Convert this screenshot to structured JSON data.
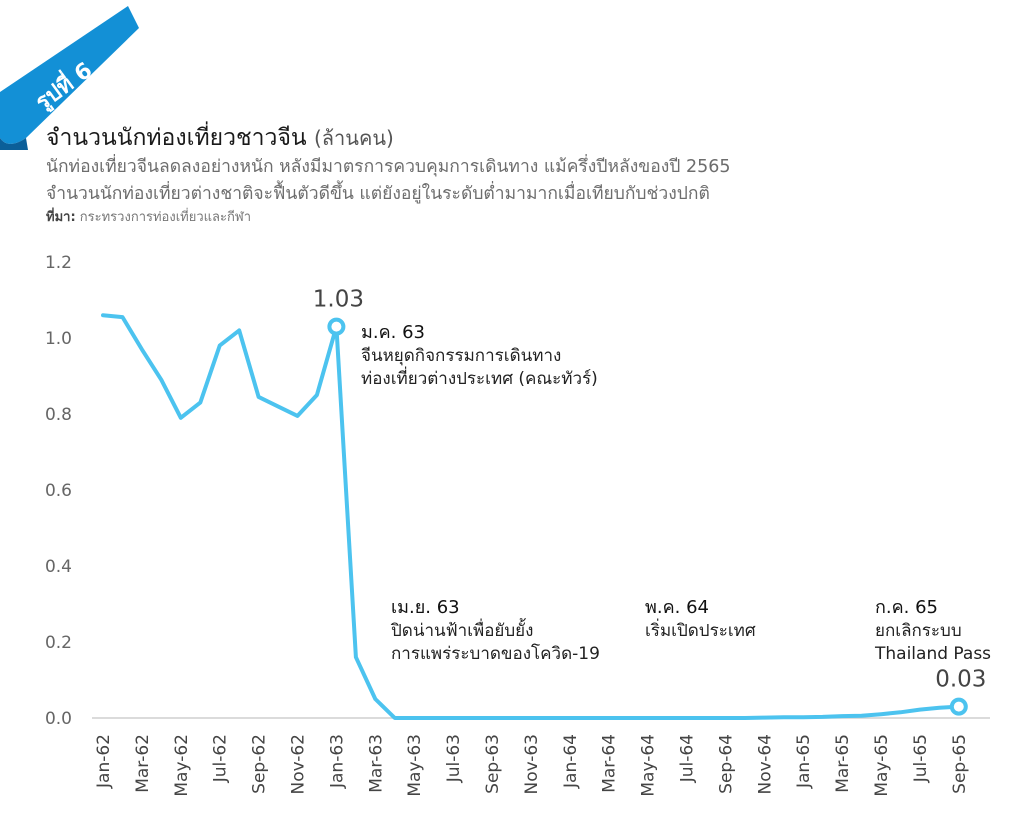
{
  "badge": {
    "text": "รูปที่ 6",
    "color": "#1390d6"
  },
  "header": {
    "title": "จำนวนนักท่องเที่ยวชาวจีน",
    "title_unit": "(ล้านคน)",
    "subtitle_1": "นักท่องเที่ยวจีนลดลงอย่างหนัก หลังมีมาตรการควบคุมการเดินทาง แม้ครึ่งปีหลังของปี 2565",
    "subtitle_2": "จำนวนนักท่องเที่ยวต่างชาติจะฟื้นตัวดีขึ้น แต่ยังอยู่ในระดับต่ำมามากเมื่อเทียบกับช่วงปกติ",
    "source_label": "ที่มา:",
    "source": "กระทรวงการท่องเที่ยวและกีฬา"
  },
  "chart_data": {
    "type": "line",
    "line_color": "#4cc3ef",
    "ylim": [
      0,
      1.2
    ],
    "y_ticks": [
      "0.0",
      "0.2",
      "0.4",
      "0.6",
      "0.8",
      "1.0",
      "1.2"
    ],
    "y_tick_values": [
      0,
      0.2,
      0.4,
      0.6,
      0.8,
      1.0,
      1.2
    ],
    "x": [
      "Jan-62",
      "Feb-62",
      "Mar-62",
      "Apr-62",
      "May-62",
      "Jun-62",
      "Jul-62",
      "Aug-62",
      "Sep-62",
      "Oct-62",
      "Nov-62",
      "Dec-62",
      "Jan-63",
      "Feb-63",
      "Mar-63",
      "Apr-63",
      "May-63",
      "Jun-63",
      "Jul-63",
      "Aug-63",
      "Sep-63",
      "Oct-63",
      "Nov-63",
      "Dec-63",
      "Jan-64",
      "Feb-64",
      "Mar-64",
      "Apr-64",
      "May-64",
      "Jun-64",
      "Jul-64",
      "Aug-64",
      "Sep-64",
      "Oct-64",
      "Nov-64",
      "Dec-64",
      "Jan-65",
      "Feb-65",
      "Mar-65",
      "Apr-65",
      "May-65",
      "Jun-65",
      "Jul-65",
      "Aug-65",
      "Sep-65"
    ],
    "x_tick_labels": [
      "Jan-62",
      "Mar-62",
      "May-62",
      "Jul-62",
      "Sep-62",
      "Nov-62",
      "Jan-63",
      "Mar-63",
      "May-63",
      "Jul-63",
      "Sep-63",
      "Nov-63",
      "Jan-64",
      "Mar-64",
      "May-64",
      "Jul-64",
      "Sep-64",
      "Nov-64",
      "Jan-65",
      "Mar-65",
      "May-65",
      "Jul-65",
      "Sep-65"
    ],
    "values": [
      1.06,
      1.055,
      0.97,
      0.89,
      0.79,
      0.83,
      0.98,
      1.02,
      0.845,
      0.82,
      0.795,
      0.85,
      1.03,
      0.16,
      0.05,
      0.0,
      0.0,
      0.0,
      0.0,
      0.0,
      0.0,
      0.0,
      0.0,
      0.0,
      0.0,
      0.0,
      0.0,
      0.0,
      0.0,
      0.0,
      0.0,
      0.0,
      0.0,
      0.0,
      0.001,
      0.002,
      0.002,
      0.003,
      0.005,
      0.006,
      0.01,
      0.015,
      0.022,
      0.027,
      0.03
    ],
    "value_labels": [
      {
        "index": 12,
        "text": "1.03"
      },
      {
        "index": 44,
        "text": "0.03"
      }
    ],
    "annotations": [
      {
        "title": "ม.ค. 63",
        "lines": [
          "จีนหยุดกิจกรรมการเดินทาง",
          "ท่องเที่ยวต่างประเทศ (คณะทัวร์)"
        ]
      },
      {
        "title": "เม.ย. 63",
        "lines": [
          "ปิดน่านฟ้าเพื่อยับยั้ง",
          "การแพร่ระบาดของโควิด-19"
        ]
      },
      {
        "title": "พ.ค. 64",
        "lines": [
          "เริ่มเปิดประเทศ"
        ]
      },
      {
        "title": "ก.ค. 65",
        "lines": [
          "ยกเลิกระบบ",
          "Thailand Pass"
        ]
      }
    ]
  }
}
